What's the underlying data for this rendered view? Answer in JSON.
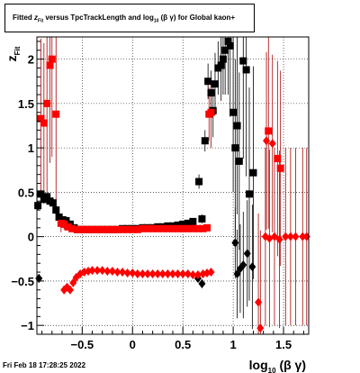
{
  "title": {
    "prefix": "Fitted",
    "var": "z",
    "var_sub": "Fit",
    "middle": "versus TpcTrackLength and log",
    "log_sub": "10",
    "paren": "(β γ)",
    "suffix": "for Global kaon+"
  },
  "timestamp": "Fri Feb 18 17:28:25 2022",
  "x_axis_label": {
    "main": "log",
    "sub": "10",
    "tail": "(β γ)"
  },
  "y_axis_label": {
    "main": "z",
    "sub": "Fit"
  },
  "colors": {
    "black_series": "#000000",
    "red_series": "#ff0000",
    "red_errorbar": "#aa0000",
    "grid": "#000000",
    "background": "#ffffff"
  },
  "chart_data": {
    "type": "scatter",
    "xlim": [
      -0.95,
      1.75
    ],
    "ylim": [
      -1.1,
      2.25
    ],
    "x_ticks": [
      -0.5,
      0,
      0.5,
      1,
      1.5
    ],
    "x_tick_labels": [
      "−0.5",
      "0",
      "0.5",
      "1",
      "1.5"
    ],
    "y_ticks": [
      -1,
      -0.5,
      0,
      0.5,
      1,
      1.5,
      2
    ],
    "y_tick_labels": [
      "−1",
      "−0.5",
      "0",
      "0.5",
      "1",
      "1.5",
      "2"
    ],
    "grid": true,
    "series": [
      {
        "marker": "square",
        "color": "#000000",
        "points": [
          {
            "x": -0.94,
            "y": 0.35,
            "err": 0.05
          },
          {
            "x": -0.91,
            "y": 0.48,
            "err": 0.05
          },
          {
            "x": -0.88,
            "y": 0.42,
            "err": 0.05
          },
          {
            "x": -0.85,
            "y": 0.45,
            "err": 0.05
          },
          {
            "x": -0.82,
            "y": 0.4,
            "err": 0.05
          },
          {
            "x": -0.79,
            "y": 0.38,
            "err": 0.05
          },
          {
            "x": -0.76,
            "y": 0.3,
            "err": 0.05
          },
          {
            "x": -0.73,
            "y": 0.22,
            "err": 0.05
          },
          {
            "x": -0.7,
            "y": 0.19,
            "err": 0.05
          },
          {
            "x": -0.66,
            "y": 0.18,
            "err": 0.05
          },
          {
            "x": -0.62,
            "y": 0.14,
            "err": 0.04
          },
          {
            "x": -0.58,
            "y": 0.1,
            "err": 0.03
          },
          {
            "x": -0.54,
            "y": 0.08,
            "err": 0.03
          },
          {
            "x": -0.5,
            "y": 0.08,
            "err": 0.02
          },
          {
            "x": -0.45,
            "y": 0.08,
            "err": 0.02
          },
          {
            "x": -0.4,
            "y": 0.08,
            "err": 0.02
          },
          {
            "x": -0.35,
            "y": 0.08,
            "err": 0.02
          },
          {
            "x": -0.3,
            "y": 0.08,
            "err": 0.02
          },
          {
            "x": -0.25,
            "y": 0.08,
            "err": 0.02
          },
          {
            "x": -0.2,
            "y": 0.08,
            "err": 0.02
          },
          {
            "x": -0.15,
            "y": 0.08,
            "err": 0.02
          },
          {
            "x": -0.1,
            "y": 0.09,
            "err": 0.02
          },
          {
            "x": -0.05,
            "y": 0.09,
            "err": 0.02
          },
          {
            "x": 0.0,
            "y": 0.09,
            "err": 0.02
          },
          {
            "x": 0.05,
            "y": 0.09,
            "err": 0.02
          },
          {
            "x": 0.1,
            "y": 0.1,
            "err": 0.02
          },
          {
            "x": 0.15,
            "y": 0.1,
            "err": 0.02
          },
          {
            "x": 0.2,
            "y": 0.1,
            "err": 0.02
          },
          {
            "x": 0.25,
            "y": 0.11,
            "err": 0.02
          },
          {
            "x": 0.3,
            "y": 0.11,
            "err": 0.02
          },
          {
            "x": 0.35,
            "y": 0.12,
            "err": 0.02
          },
          {
            "x": 0.4,
            "y": 0.12,
            "err": 0.02
          },
          {
            "x": 0.45,
            "y": 0.13,
            "err": 0.02
          },
          {
            "x": 0.5,
            "y": 0.14,
            "err": 0.02
          },
          {
            "x": 0.55,
            "y": 0.15,
            "err": 0.03
          },
          {
            "x": 0.6,
            "y": 0.17,
            "err": 0.03
          },
          {
            "x": 0.66,
            "y": 0.62,
            "err": 0.08
          },
          {
            "x": 0.69,
            "y": 0.2,
            "err": 0.05
          },
          {
            "x": 0.72,
            "y": 1.08,
            "err": 0.12
          },
          {
            "x": 0.75,
            "y": 1.75,
            "err": 0.2
          },
          {
            "x": 0.78,
            "y": 1.62,
            "err": 0.25
          },
          {
            "x": 0.8,
            "y": 1.42,
            "err": 0.3
          },
          {
            "x": 0.82,
            "y": 1.72,
            "err": 0.35
          },
          {
            "x": 0.85,
            "y": 1.9,
            "err": 0.3
          },
          {
            "x": 0.88,
            "y": 1.93,
            "err": 0.4
          },
          {
            "x": 0.9,
            "y": 2.0,
            "err": 0.4
          },
          {
            "x": 0.92,
            "y": 2.1,
            "err": 0.5
          },
          {
            "x": 0.95,
            "y": 2.2,
            "err": 0.6
          },
          {
            "x": 0.97,
            "y": 2.15,
            "err": 0.8
          },
          {
            "x": 1.0,
            "y": 1.4,
            "err": 0.9
          },
          {
            "x": 1.02,
            "y": 1.0,
            "err": 1.0
          },
          {
            "x": 1.04,
            "y": 1.25,
            "err": 1.0
          },
          {
            "x": 1.06,
            "y": 0.85,
            "err": 1.0
          },
          {
            "x": 1.1,
            "y": 1.98,
            "err": 1.1
          },
          {
            "x": 1.13,
            "y": 1.88,
            "err": 1.2
          },
          {
            "x": 1.16,
            "y": 0.48,
            "err": 1.2
          },
          {
            "x": 1.2,
            "y": 0.72,
            "err": 1.2
          }
        ]
      },
      {
        "marker": "diamond",
        "color": "#000000",
        "points": [
          {
            "x": -0.93,
            "y": -0.47,
            "err": 0.05
          },
          {
            "x": 0.65,
            "y": -0.47,
            "err": 0.04
          },
          {
            "x": 0.69,
            "y": -0.53,
            "err": 0.05
          },
          {
            "x": 1.02,
            "y": -0.07,
            "err": 0.4
          },
          {
            "x": 1.04,
            "y": -0.42,
            "err": 0.5
          },
          {
            "x": 1.07,
            "y": -0.36,
            "err": 0.5
          },
          {
            "x": 1.1,
            "y": -0.32,
            "err": 0.6
          },
          {
            "x": 1.14,
            "y": -0.19,
            "err": 0.6
          },
          {
            "x": 1.19,
            "y": -0.34,
            "err": 0.7
          }
        ]
      },
      {
        "marker": "square",
        "color": "#ff0000",
        "points": [
          {
            "x": -0.91,
            "y": 1.33,
            "err": 0.9
          },
          {
            "x": -0.88,
            "y": 1.28,
            "err": 0.9
          },
          {
            "x": -0.85,
            "y": 1.5,
            "err": 1.0
          },
          {
            "x": -0.82,
            "y": 1.93,
            "err": 1.1
          },
          {
            "x": -0.8,
            "y": 2.0,
            "err": 1.1
          },
          {
            "x": -0.76,
            "y": 1.38,
            "err": 1.1
          },
          {
            "x": -0.71,
            "y": 0.15,
            "err": 0.1
          },
          {
            "x": -0.68,
            "y": 0.14,
            "err": 0.06
          },
          {
            "x": -0.64,
            "y": 0.11,
            "err": 0.04
          },
          {
            "x": -0.6,
            "y": 0.09,
            "err": 0.03
          },
          {
            "x": -0.55,
            "y": 0.08,
            "err": 0.02
          },
          {
            "x": -0.5,
            "y": 0.08,
            "err": 0.02
          },
          {
            "x": -0.45,
            "y": 0.08,
            "err": 0.02
          },
          {
            "x": -0.4,
            "y": 0.08,
            "err": 0.02
          },
          {
            "x": -0.35,
            "y": 0.08,
            "err": 0.02
          },
          {
            "x": -0.3,
            "y": 0.08,
            "err": 0.02
          },
          {
            "x": -0.25,
            "y": 0.08,
            "err": 0.02
          },
          {
            "x": -0.2,
            "y": 0.08,
            "err": 0.02
          },
          {
            "x": -0.15,
            "y": 0.08,
            "err": 0.02
          },
          {
            "x": -0.1,
            "y": 0.08,
            "err": 0.02
          },
          {
            "x": -0.05,
            "y": 0.08,
            "err": 0.02
          },
          {
            "x": 0.0,
            "y": 0.08,
            "err": 0.02
          },
          {
            "x": 0.05,
            "y": 0.08,
            "err": 0.02
          },
          {
            "x": 0.1,
            "y": 0.09,
            "err": 0.02
          },
          {
            "x": 0.15,
            "y": 0.09,
            "err": 0.02
          },
          {
            "x": 0.2,
            "y": 0.09,
            "err": 0.02
          },
          {
            "x": 0.25,
            "y": 0.09,
            "err": 0.02
          },
          {
            "x": 0.3,
            "y": 0.09,
            "err": 0.02
          },
          {
            "x": 0.35,
            "y": 0.09,
            "err": 0.02
          },
          {
            "x": 0.4,
            "y": 0.09,
            "err": 0.02
          },
          {
            "x": 0.45,
            "y": 0.09,
            "err": 0.02
          },
          {
            "x": 0.5,
            "y": 0.09,
            "err": 0.02
          },
          {
            "x": 0.55,
            "y": 0.09,
            "err": 0.02
          },
          {
            "x": 0.6,
            "y": 0.09,
            "err": 0.02
          },
          {
            "x": 0.65,
            "y": 0.09,
            "err": 0.02
          },
          {
            "x": 0.7,
            "y": 0.09,
            "err": 0.02
          },
          {
            "x": 0.74,
            "y": 0.1,
            "err": 0.03
          },
          {
            "x": 0.76,
            "y": 1.38,
            "err": 0.3
          },
          {
            "x": 0.78,
            "y": 1.4,
            "err": 0.4
          },
          {
            "x": 1.35,
            "y": 1.19,
            "err": 1.1
          },
          {
            "x": 1.44,
            "y": 0.88,
            "err": 1.1
          },
          {
            "x": 1.47,
            "y": 0.77,
            "err": 1.1
          }
        ]
      },
      {
        "marker": "diamond",
        "color": "#ff0000",
        "points": [
          {
            "x": -0.68,
            "y": -0.6,
            "err": 0.05
          },
          {
            "x": -0.65,
            "y": -0.57,
            "err": 0.04
          },
          {
            "x": -0.62,
            "y": -0.6,
            "err": 0.04
          },
          {
            "x": -0.59,
            "y": -0.52,
            "err": 0.03
          },
          {
            "x": -0.56,
            "y": -0.46,
            "err": 0.03
          },
          {
            "x": -0.52,
            "y": -0.42,
            "err": 0.02
          },
          {
            "x": -0.48,
            "y": -0.4,
            "err": 0.02
          },
          {
            "x": -0.44,
            "y": -0.39,
            "err": 0.02
          },
          {
            "x": -0.4,
            "y": -0.38,
            "err": 0.02
          },
          {
            "x": -0.35,
            "y": -0.38,
            "err": 0.02
          },
          {
            "x": -0.3,
            "y": -0.38,
            "err": 0.02
          },
          {
            "x": -0.25,
            "y": -0.39,
            "err": 0.02
          },
          {
            "x": -0.2,
            "y": -0.39,
            "err": 0.02
          },
          {
            "x": -0.15,
            "y": -0.4,
            "err": 0.02
          },
          {
            "x": -0.1,
            "y": -0.4,
            "err": 0.02
          },
          {
            "x": -0.05,
            "y": -0.41,
            "err": 0.02
          },
          {
            "x": 0.0,
            "y": -0.41,
            "err": 0.02
          },
          {
            "x": 0.05,
            "y": -0.42,
            "err": 0.02
          },
          {
            "x": 0.1,
            "y": -0.42,
            "err": 0.02
          },
          {
            "x": 0.15,
            "y": -0.42,
            "err": 0.02
          },
          {
            "x": 0.2,
            "y": -0.42,
            "err": 0.02
          },
          {
            "x": 0.25,
            "y": -0.42,
            "err": 0.02
          },
          {
            "x": 0.3,
            "y": -0.42,
            "err": 0.02
          },
          {
            "x": 0.35,
            "y": -0.42,
            "err": 0.02
          },
          {
            "x": 0.4,
            "y": -0.42,
            "err": 0.02
          },
          {
            "x": 0.45,
            "y": -0.42,
            "err": 0.02
          },
          {
            "x": 0.5,
            "y": -0.42,
            "err": 0.02
          },
          {
            "x": 0.55,
            "y": -0.42,
            "err": 0.02
          },
          {
            "x": 0.6,
            "y": -0.43,
            "err": 0.02
          },
          {
            "x": 0.65,
            "y": -0.43,
            "err": 0.02
          },
          {
            "x": 0.7,
            "y": -0.42,
            "err": 0.02
          },
          {
            "x": 0.74,
            "y": -0.41,
            "err": 0.03
          },
          {
            "x": 0.78,
            "y": -0.4,
            "err": 0.04
          },
          {
            "x": 1.25,
            "y": -0.74,
            "err": 1.0
          },
          {
            "x": 1.27,
            "y": -1.03,
            "err": 1.1
          },
          {
            "x": 1.32,
            "y": 0.0,
            "err": 1.0
          },
          {
            "x": 1.36,
            "y": -0.02,
            "err": 1.0
          },
          {
            "x": 1.41,
            "y": 0.0,
            "err": 1.0
          },
          {
            "x": 1.46,
            "y": -0.03,
            "err": 1.0
          },
          {
            "x": 1.52,
            "y": 0.0,
            "err": 1.0
          },
          {
            "x": 1.57,
            "y": 0.0,
            "err": 1.0
          },
          {
            "x": 1.62,
            "y": 0.0,
            "err": 1.0
          },
          {
            "x": 1.69,
            "y": 0.0,
            "err": 1.0
          },
          {
            "x": 1.73,
            "y": 0.0,
            "err": 1.0
          },
          {
            "x": 1.33,
            "y": 1.08,
            "err": 1.0
          },
          {
            "x": 1.39,
            "y": 1.05,
            "err": 1.0
          }
        ]
      }
    ]
  }
}
